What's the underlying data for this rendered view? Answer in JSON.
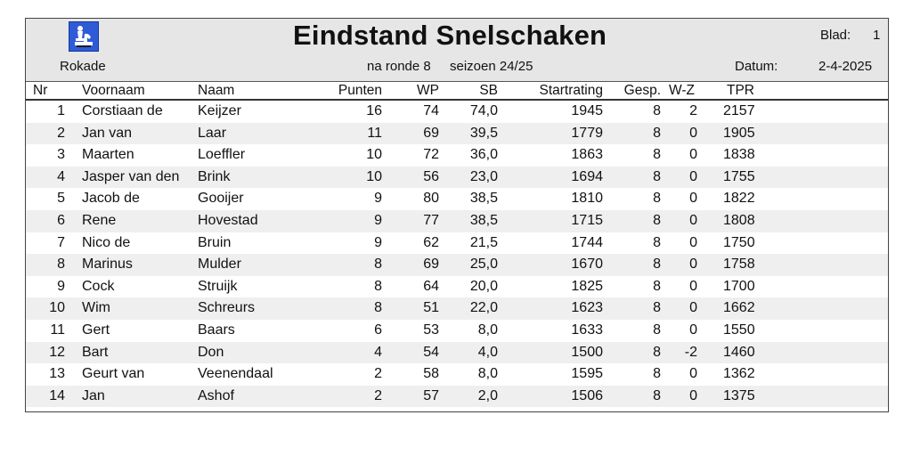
{
  "header": {
    "title": "Eindstand Snelschaken",
    "club": "Rokade",
    "blad_label": "Blad:",
    "blad_value": "1",
    "round": "na ronde 8",
    "season": "seizoen 24/25",
    "datum_label": "Datum:",
    "datum_value": "2-4-2025",
    "logo_icon": "chess-pieces-icon"
  },
  "columns": {
    "nr": "Nr",
    "voornaam": "Voornaam",
    "naam": "Naam",
    "punten": "Punten",
    "wp": "WP",
    "sb": "SB",
    "startrating": "Startrating",
    "gesp": "Gesp.",
    "wz": "W-Z",
    "tpr": "TPR"
  },
  "rows": [
    {
      "nr": "1",
      "voornaam": "Corstiaan de",
      "naam": "Keijzer",
      "punten": "16",
      "wp": "74",
      "sb": "74,0",
      "startrating": "1945",
      "gesp": "8",
      "wz": "2",
      "tpr": "2157"
    },
    {
      "nr": "2",
      "voornaam": "Jan van",
      "naam": "Laar",
      "punten": "11",
      "wp": "69",
      "sb": "39,5",
      "startrating": "1779",
      "gesp": "8",
      "wz": "0",
      "tpr": "1905"
    },
    {
      "nr": "3",
      "voornaam": "Maarten",
      "naam": "Loeffler",
      "punten": "10",
      "wp": "72",
      "sb": "36,0",
      "startrating": "1863",
      "gesp": "8",
      "wz": "0",
      "tpr": "1838"
    },
    {
      "nr": "4",
      "voornaam": "Jasper van den",
      "naam": "Brink",
      "punten": "10",
      "wp": "56",
      "sb": "23,0",
      "startrating": "1694",
      "gesp": "8",
      "wz": "0",
      "tpr": "1755"
    },
    {
      "nr": "5",
      "voornaam": "Jacob de",
      "naam": "Gooijer",
      "punten": "9",
      "wp": "80",
      "sb": "38,5",
      "startrating": "1810",
      "gesp": "8",
      "wz": "0",
      "tpr": "1822"
    },
    {
      "nr": "6",
      "voornaam": "Rene",
      "naam": "Hovestad",
      "punten": "9",
      "wp": "77",
      "sb": "38,5",
      "startrating": "1715",
      "gesp": "8",
      "wz": "0",
      "tpr": "1808"
    },
    {
      "nr": "7",
      "voornaam": "Nico de",
      "naam": "Bruin",
      "punten": "9",
      "wp": "62",
      "sb": "21,5",
      "startrating": "1744",
      "gesp": "8",
      "wz": "0",
      "tpr": "1750"
    },
    {
      "nr": "8",
      "voornaam": "Marinus",
      "naam": "Mulder",
      "punten": "8",
      "wp": "69",
      "sb": "25,0",
      "startrating": "1670",
      "gesp": "8",
      "wz": "0",
      "tpr": "1758"
    },
    {
      "nr": "9",
      "voornaam": "Cock",
      "naam": "Struijk",
      "punten": "8",
      "wp": "64",
      "sb": "20,0",
      "startrating": "1825",
      "gesp": "8",
      "wz": "0",
      "tpr": "1700"
    },
    {
      "nr": "10",
      "voornaam": "Wim",
      "naam": "Schreurs",
      "punten": "8",
      "wp": "51",
      "sb": "22,0",
      "startrating": "1623",
      "gesp": "8",
      "wz": "0",
      "tpr": "1662"
    },
    {
      "nr": "11",
      "voornaam": "Gert",
      "naam": "Baars",
      "punten": "6",
      "wp": "53",
      "sb": "8,0",
      "startrating": "1633",
      "gesp": "8",
      "wz": "0",
      "tpr": "1550"
    },
    {
      "nr": "12",
      "voornaam": "Bart",
      "naam": "Don",
      "punten": "4",
      "wp": "54",
      "sb": "4,0",
      "startrating": "1500",
      "gesp": "8",
      "wz": "-2",
      "tpr": "1460"
    },
    {
      "nr": "13",
      "voornaam": "Geurt van",
      "naam": "Veenendaal",
      "punten": "2",
      "wp": "58",
      "sb": "8,0",
      "startrating": "1595",
      "gesp": "8",
      "wz": "0",
      "tpr": "1362"
    },
    {
      "nr": "14",
      "voornaam": "Jan",
      "naam": "Ashof",
      "punten": "2",
      "wp": "57",
      "sb": "2,0",
      "startrating": "1506",
      "gesp": "8",
      "wz": "0",
      "tpr": "1375"
    }
  ]
}
